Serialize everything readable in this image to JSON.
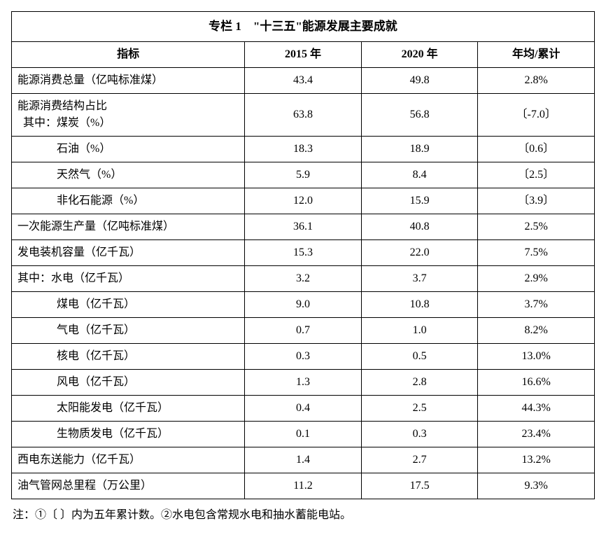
{
  "table": {
    "title": "专栏 1　\"十三五\"能源发展主要成就",
    "headers": {
      "indicator": "指标",
      "y2015": "2015 年",
      "y2020": "2020 年",
      "avg": "年均/累计"
    },
    "rows": [
      {
        "indent": "ind0",
        "label": "能源消费总量（亿吨标准煤）",
        "y2015": "43.4",
        "y2020": "49.8",
        "avg": "2.8%"
      },
      {
        "indent": "multi",
        "label_line1": "能源消费结构占比",
        "label_line2": "其中：煤炭（%）",
        "y2015": "63.8",
        "y2020": "56.8",
        "avg": "〔-7.0〕"
      },
      {
        "indent": "ind2",
        "label": "石油（%）",
        "y2015": "18.3",
        "y2020": "18.9",
        "avg": "〔0.6〕"
      },
      {
        "indent": "ind2",
        "label": "天然气（%）",
        "y2015": "5.9",
        "y2020": "8.4",
        "avg": "〔2.5〕"
      },
      {
        "indent": "ind2",
        "label": "非化石能源（%）",
        "y2015": "12.0",
        "y2020": "15.9",
        "avg": "〔3.9〕"
      },
      {
        "indent": "ind0",
        "label": "一次能源生产量（亿吨标准煤）",
        "y2015": "36.1",
        "y2020": "40.8",
        "avg": "2.5%"
      },
      {
        "indent": "ind0",
        "label": "发电装机容量（亿千瓦）",
        "y2015": "15.3",
        "y2020": "22.0",
        "avg": "7.5%"
      },
      {
        "indent": "ind1",
        "label": "其中：水电（亿千瓦）",
        "y2015": "3.2",
        "y2020": "3.7",
        "avg": "2.9%"
      },
      {
        "indent": "ind2",
        "label": "煤电（亿千瓦）",
        "y2015": "9.0",
        "y2020": "10.8",
        "avg": "3.7%"
      },
      {
        "indent": "ind2",
        "label": "气电（亿千瓦）",
        "y2015": "0.7",
        "y2020": "1.0",
        "avg": "8.2%"
      },
      {
        "indent": "ind2",
        "label": "核电（亿千瓦）",
        "y2015": "0.3",
        "y2020": "0.5",
        "avg": "13.0%"
      },
      {
        "indent": "ind2",
        "label": "风电（亿千瓦）",
        "y2015": "1.3",
        "y2020": "2.8",
        "avg": "16.6%"
      },
      {
        "indent": "ind2",
        "label": "太阳能发电（亿千瓦）",
        "y2015": "0.4",
        "y2020": "2.5",
        "avg": "44.3%"
      },
      {
        "indent": "ind2",
        "label": "生物质发电（亿千瓦）",
        "y2015": "0.1",
        "y2020": "0.3",
        "avg": "23.4%"
      },
      {
        "indent": "ind0",
        "label": "西电东送能力（亿千瓦）",
        "y2015": "1.4",
        "y2020": "2.7",
        "avg": "13.2%"
      },
      {
        "indent": "ind0",
        "label": "油气管网总里程（万公里）",
        "y2015": "11.2",
        "y2020": "17.5",
        "avg": "9.3%"
      }
    ],
    "footnote": "注：①〔 〕内为五年累计数。②水电包含常规水电和抽水蓄能电站。",
    "colors": {
      "border": "#000000",
      "background": "#ffffff",
      "text": "#000000"
    },
    "font": {
      "family": "SimSun",
      "base_size_pt": 12,
      "title_size_pt": 13,
      "title_weight": "bold",
      "header_weight": "bold"
    },
    "column_widths_pct": [
      40,
      20,
      20,
      20
    ]
  }
}
